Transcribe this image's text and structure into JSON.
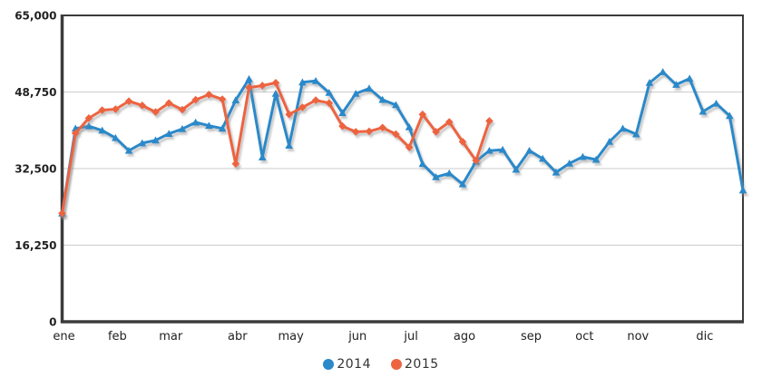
{
  "chart_data": {
    "type": "line",
    "title": "",
    "xlabel": "",
    "ylabel": "",
    "weeks_total": 52,
    "x_axis": {
      "tick_labels": [
        "ene",
        "feb",
        "mar",
        "abr",
        "may",
        "jun",
        "jul",
        "ago",
        "sep",
        "oct",
        "nov",
        "dic"
      ],
      "tick_week_indices": [
        0,
        4,
        8,
        13,
        17,
        22,
        26,
        30,
        35,
        39,
        43,
        48
      ]
    },
    "y_axis": {
      "tick_labels": [
        "65,000",
        "48,750",
        "32,500",
        "16,250",
        "0"
      ],
      "tick_values": [
        65000,
        48750,
        32500,
        16250,
        0
      ],
      "min": 0,
      "max": 65000
    },
    "grid": "horizontal-only",
    "legend_position": "bottom-center",
    "series": [
      {
        "name": "2014",
        "color": "#2a89c9",
        "marker": "triangle",
        "values": [
          23000,
          41000,
          41500,
          40600,
          39000,
          36300,
          37900,
          38500,
          39900,
          40900,
          42300,
          41600,
          41000,
          47000,
          51500,
          34900,
          48400,
          37400,
          50800,
          51100,
          48600,
          44300,
          48400,
          49500,
          47100,
          46000,
          41300,
          33500,
          30700,
          31500,
          29200,
          34000,
          36300,
          36500,
          32300,
          36300,
          34600,
          31700,
          33600,
          35000,
          34400,
          38200,
          41000,
          39800,
          50700,
          53000,
          50300,
          51600,
          44600,
          46300,
          43700,
          27900
        ]
      },
      {
        "name": "2015",
        "color": "#ed6440",
        "marker": "diamond",
        "values": [
          23000,
          40000,
          43200,
          44900,
          45100,
          46800,
          45900,
          44500,
          46400,
          45000,
          47100,
          48200,
          47200,
          33500,
          49700,
          50100,
          50700,
          44000,
          45500,
          47000,
          46400,
          41500,
          40300,
          40400,
          41200,
          39800,
          37000,
          44000,
          40300,
          42400,
          38200,
          34200,
          42600
        ]
      }
    ]
  },
  "colors": {
    "grid": "#cccccc",
    "axis": "#3b3b3b",
    "tick_label": "#222222",
    "legend_text": "#333333",
    "background": "#ffffff"
  }
}
